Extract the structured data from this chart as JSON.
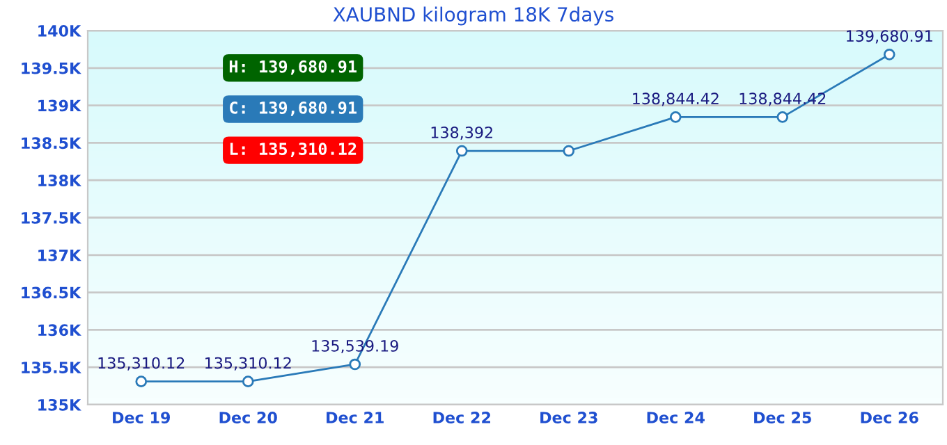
{
  "chart_data": {
    "type": "line",
    "title": "XAUBND kilogram 18K 7days",
    "categories": [
      "Dec 19",
      "Dec 20",
      "Dec 21",
      "Dec 22",
      "Dec 23",
      "Dec 24",
      "Dec 25",
      "Dec 26"
    ],
    "series": [
      {
        "color": "#2a7ab8",
        "values": [
          135310.12,
          135310.12,
          135539.19,
          138392,
          138392,
          138844.42,
          138844.42,
          139680.91
        ],
        "value_labels": [
          "135,310.12",
          "135,310.12",
          "135,539.19",
          "138,392",
          null,
          "138,844.42",
          "138,844.42",
          "139,680.91"
        ]
      }
    ],
    "ylim": [
      135000,
      140000
    ],
    "yticks": [
      {
        "value": 135000,
        "label": "135K"
      },
      {
        "value": 135500,
        "label": "135.5K"
      },
      {
        "value": 136000,
        "label": "136K"
      },
      {
        "value": 136500,
        "label": "136.5K"
      },
      {
        "value": 137000,
        "label": "137K"
      },
      {
        "value": 137500,
        "label": "137.5K"
      },
      {
        "value": 138000,
        "label": "138K"
      },
      {
        "value": 138500,
        "label": "138.5K"
      },
      {
        "value": 139000,
        "label": "139K"
      },
      {
        "value": 139500,
        "label": "139.5K"
      },
      {
        "value": 140000,
        "label": "140K"
      }
    ],
    "annotations": [
      "H: 139,680.91",
      "C: 139,680.91",
      "L: 135,310.12"
    ],
    "grid": "y",
    "marker": "circle",
    "line_style": "solid",
    "legend": false
  }
}
